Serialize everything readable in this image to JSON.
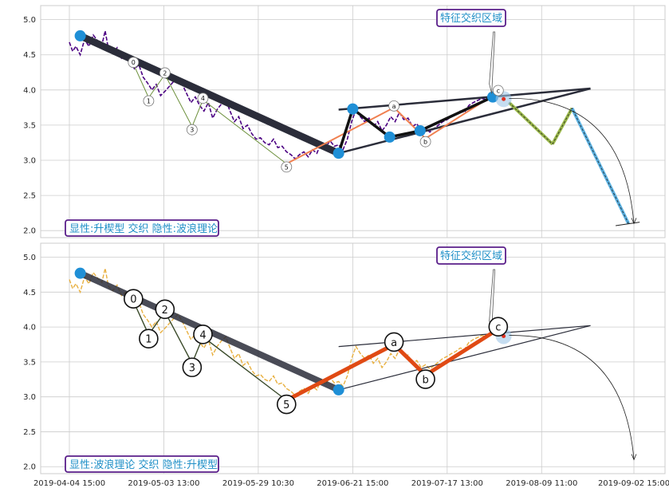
{
  "chart_data": [
    {
      "type": "line",
      "panel": "top",
      "annotation_badge": "显性:升楔型 交织 隐性:波浪理论",
      "region_label": "特征交织区域",
      "ylim": [
        1.9,
        5.2
      ],
      "yticks": [
        "2.0",
        "2.5",
        "3.0",
        "3.5",
        "4.0",
        "4.5",
        "5.0"
      ],
      "grid": true,
      "price_color": "#4b0082",
      "price_series": [
        [
          0.0,
          4.68
        ],
        [
          0.3,
          4.55
        ],
        [
          0.6,
          4.62
        ],
        [
          1.0,
          4.5
        ],
        [
          1.4,
          4.72
        ],
        [
          1.8,
          4.62
        ],
        [
          2.2,
          4.78
        ],
        [
          2.6,
          4.7
        ],
        [
          3.0,
          4.64
        ],
        [
          3.3,
          4.84
        ],
        [
          3.6,
          4.58
        ],
        [
          4.0,
          4.52
        ],
        [
          4.4,
          4.6
        ],
        [
          4.8,
          4.45
        ],
        [
          5.2,
          4.5
        ],
        [
          5.6,
          4.4
        ],
        [
          6.0,
          4.3
        ],
        [
          6.4,
          4.36
        ],
        [
          6.8,
          4.18
        ],
        [
          7.2,
          4.1
        ],
        [
          7.6,
          4.0
        ],
        [
          8.0,
          4.08
        ],
        [
          8.4,
          3.92
        ],
        [
          8.8,
          3.98
        ],
        [
          9.2,
          4.05
        ],
        [
          9.6,
          4.12
        ],
        [
          10.0,
          4.18
        ],
        [
          10.4,
          4.08
        ],
        [
          10.8,
          3.95
        ],
        [
          11.2,
          3.82
        ],
        [
          11.6,
          3.9
        ],
        [
          12.0,
          3.78
        ],
        [
          12.4,
          3.7
        ],
        [
          12.8,
          3.82
        ],
        [
          13.2,
          3.6
        ],
        [
          13.6,
          3.72
        ],
        [
          14.0,
          3.8
        ],
        [
          14.4,
          3.86
        ],
        [
          14.8,
          3.7
        ],
        [
          15.2,
          3.55
        ],
        [
          15.6,
          3.62
        ],
        [
          16.0,
          3.45
        ],
        [
          16.4,
          3.5
        ],
        [
          16.8,
          3.38
        ],
        [
          17.2,
          3.3
        ],
        [
          17.6,
          3.32
        ],
        [
          18.0,
          3.25
        ],
        [
          18.4,
          3.22
        ],
        [
          18.8,
          3.3
        ],
        [
          19.2,
          3.18
        ],
        [
          19.6,
          3.2
        ],
        [
          20.0,
          3.12
        ],
        [
          20.4,
          3.08
        ],
        [
          20.8,
          3.02
        ],
        [
          21.2,
          3.08
        ],
        [
          21.6,
          3.12
        ],
        [
          22.0,
          3.05
        ],
        [
          22.4,
          3.15
        ],
        [
          22.8,
          3.1
        ],
        [
          23.2,
          3.25
        ],
        [
          23.6,
          3.18
        ],
        [
          24.0,
          3.28
        ],
        [
          24.4,
          3.2
        ],
        [
          24.8,
          3.22
        ],
        [
          25.2,
          3.15
        ],
        [
          25.6,
          3.3
        ],
        [
          26.0,
          3.55
        ],
        [
          26.4,
          3.72
        ],
        [
          26.8,
          3.62
        ],
        [
          27.2,
          3.55
        ],
        [
          27.6,
          3.6
        ],
        [
          28.0,
          3.48
        ],
        [
          28.4,
          3.55
        ],
        [
          28.8,
          3.42
        ],
        [
          29.2,
          3.5
        ],
        [
          29.6,
          3.62
        ],
        [
          30.0,
          3.55
        ],
        [
          30.4,
          3.68
        ],
        [
          30.8,
          3.58
        ],
        [
          31.2,
          3.6
        ],
        [
          31.6,
          3.48
        ],
        [
          32.0,
          3.52
        ],
        [
          32.4,
          3.42
        ],
        [
          32.8,
          3.46
        ],
        [
          33.2,
          3.4
        ],
        [
          33.6,
          3.45
        ],
        [
          34.0,
          3.5
        ],
        [
          34.4,
          3.55
        ],
        [
          34.8,
          3.58
        ],
        [
          35.2,
          3.62
        ],
        [
          35.6,
          3.65
        ],
        [
          36.0,
          3.7
        ],
        [
          36.4,
          3.68
        ],
        [
          36.8,
          3.78
        ],
        [
          37.2,
          3.82
        ],
        [
          37.6,
          3.85
        ],
        [
          38.0,
          3.88
        ],
        [
          38.4,
          3.86
        ]
      ],
      "points": [
        {
          "x": 1.0,
          "y": 4.77,
          "kind": "pivot"
        },
        {
          "x": 24.8,
          "y": 3.1,
          "kind": "pivot"
        },
        {
          "x": 26.1,
          "y": 3.73,
          "kind": "pivot"
        },
        {
          "x": 29.5,
          "y": 3.33,
          "kind": "pivot"
        },
        {
          "x": 32.3,
          "y": 3.42,
          "kind": "pivot"
        },
        {
          "x": 39.0,
          "y": 3.9,
          "kind": "pivot"
        },
        {
          "x": 5.9,
          "y": 4.37,
          "label": "0"
        },
        {
          "x": 7.3,
          "y": 3.89,
          "label": "1"
        },
        {
          "x": 8.8,
          "y": 4.22,
          "label": "2"
        },
        {
          "x": 11.3,
          "y": 3.48,
          "label": "3"
        },
        {
          "x": 12.3,
          "y": 3.86,
          "label": "4"
        },
        {
          "x": 20.0,
          "y": 2.95,
          "label": "5"
        },
        {
          "x": 29.9,
          "y": 3.75,
          "label": "a"
        },
        {
          "x": 32.8,
          "y": 3.31,
          "label": "b"
        },
        {
          "x": 39.5,
          "y": 3.97,
          "label": "c"
        }
      ],
      "projection": [
        [
          40.5,
          3.82
        ],
        [
          44.5,
          3.23
        ],
        [
          46.3,
          3.74
        ],
        [
          51.5,
          2.1
        ]
      ]
    },
    {
      "type": "line",
      "panel": "bottom",
      "annotation_badge": "显性:波浪理论 交织 隐性:升楔型",
      "region_label": "特征交织区域",
      "ylim": [
        1.9,
        5.2
      ],
      "yticks": [
        "2.0",
        "2.5",
        "3.0",
        "3.5",
        "4.0",
        "4.5",
        "5.0"
      ],
      "xticks": [
        "2019-04-04 15:00",
        "2019-05-03 13:00",
        "2019-05-29 10:30",
        "2019-06-21 15:00",
        "2019-07-17 13:00",
        "2019-08-09 11:00",
        "2019-09-02 15:00"
      ],
      "grid": true,
      "price_color": "#e8b040",
      "points": [
        {
          "x": 1.0,
          "y": 4.77,
          "kind": "pivot"
        },
        {
          "x": 24.8,
          "y": 3.1,
          "kind": "pivot"
        },
        {
          "x": 5.9,
          "y": 4.37,
          "label": "0"
        },
        {
          "x": 7.3,
          "y": 3.89,
          "label": "1"
        },
        {
          "x": 8.8,
          "y": 4.22,
          "label": "2"
        },
        {
          "x": 11.3,
          "y": 3.48,
          "label": "3"
        },
        {
          "x": 12.3,
          "y": 3.86,
          "label": "4"
        },
        {
          "x": 20.0,
          "y": 2.95,
          "label": "5"
        },
        {
          "x": 29.9,
          "y": 3.75,
          "label": "a"
        },
        {
          "x": 32.8,
          "y": 3.31,
          "label": "b"
        },
        {
          "x": 39.5,
          "y": 3.97,
          "label": "c"
        }
      ]
    }
  ],
  "colors": {
    "grid": "#cccccc",
    "panel_border": "#cccccc",
    "pivot": "#1f8fd6",
    "trend_dark": "#2b2d3a",
    "wave_red": "#e04a14",
    "wave_orange": "#f08050",
    "badge_border": "#5a1f8a",
    "badge_text": "#1f8fc7",
    "proj_green": "#9ab84a",
    "proj_blue": "#5ab0e0"
  }
}
